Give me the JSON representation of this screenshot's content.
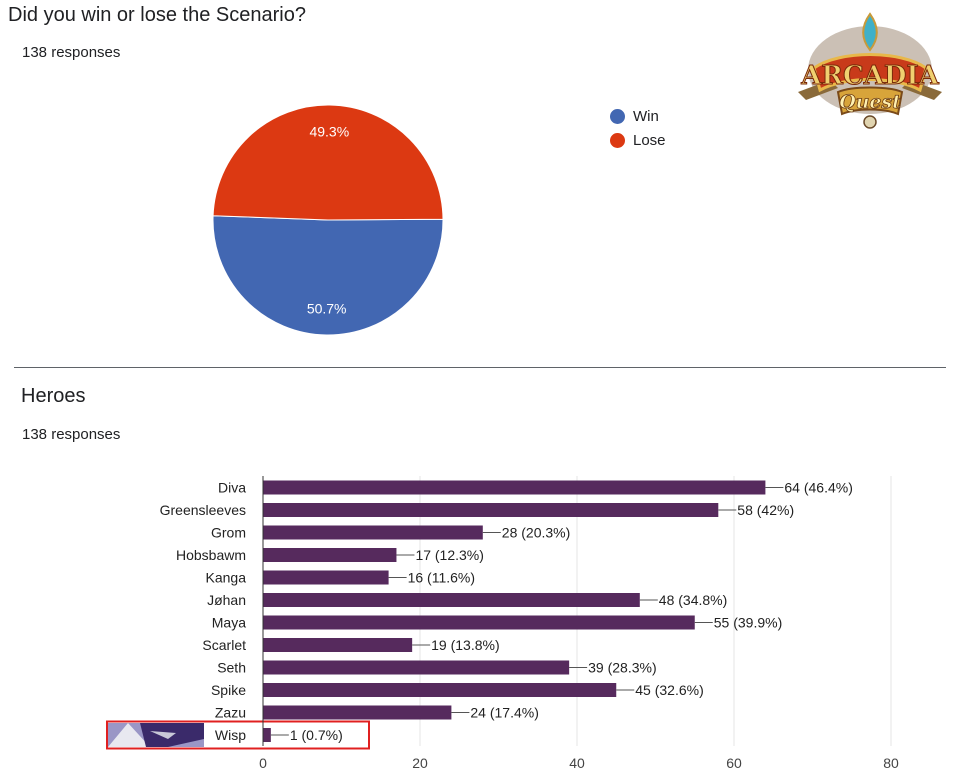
{
  "pie_section": {
    "title": "Did you win or lose the Scenario?",
    "responses": "138 responses"
  },
  "heroes_section": {
    "title": "Heroes",
    "responses": "138 responses"
  },
  "logo": {
    "text_top": "ARCADIA",
    "text_bottom": "Quest"
  },
  "chart_data": [
    {
      "type": "pie",
      "labels": [
        "Win",
        "Lose"
      ],
      "values": [
        50.7,
        49.3
      ],
      "slice_labels": [
        "50.7%",
        "49.3%"
      ],
      "colors": [
        "#4267b2",
        "#dc3912"
      ],
      "legend": "right"
    },
    {
      "type": "bar",
      "orientation": "horizontal",
      "categories": [
        "Diva",
        "Greensleeves",
        "Grom",
        "Hobsbawm",
        "Kanga",
        "Jøhan",
        "Maya",
        "Scarlet",
        "Seth",
        "Spike",
        "Zazu",
        "Wisp"
      ],
      "values": [
        64,
        58,
        28,
        17,
        16,
        48,
        55,
        19,
        39,
        45,
        24,
        1
      ],
      "data_labels": [
        "64 (46.4%)",
        "58 (42%)",
        "28 (20.3%)",
        "17 (12.3%)",
        "16 (11.6%)",
        "48 (34.8%)",
        "55 (39.9%)",
        "19 (13.8%)",
        "39 (28.3%)",
        "45 (32.6%)",
        "24 (17.4%)",
        "1 (0.7%)"
      ],
      "xlim": [
        0,
        80
      ],
      "xticks": [
        "0",
        "20",
        "40",
        "60",
        "80"
      ],
      "bar_color": "#562a5d",
      "grid": true,
      "highlighted_category": "Wisp"
    }
  ]
}
